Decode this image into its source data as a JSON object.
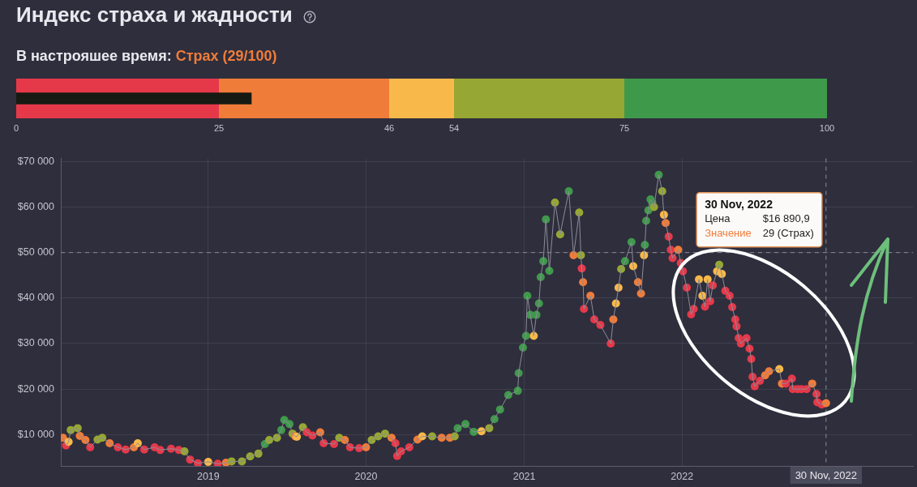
{
  "chart_data": [
    {
      "type": "bar",
      "orientation": "horizontal",
      "title": "Индекс страха и жадности",
      "subtitle": "В настрояшее время:",
      "annotations": [
        "Страх (29/100)"
      ],
      "categories": [
        null
      ],
      "values": [
        29
      ],
      "color": "#161a12",
      "xlim": [
        0,
        100
      ],
      "xticks": [
        0,
        25,
        46,
        54,
        75,
        100
      ],
      "bands": [
        {
          "axis": "x",
          "from": 0,
          "to": 25,
          "color": "#e5394a"
        },
        {
          "axis": "x",
          "from": 25,
          "to": 46,
          "color": "#f07c3a"
        },
        {
          "axis": "x",
          "from": 46,
          "to": 54,
          "color": "#f8b94a"
        },
        {
          "axis": "x",
          "from": 54,
          "to": 75,
          "color": "#97a733"
        },
        {
          "axis": "x",
          "from": 75,
          "to": 100,
          "color": "#3f994b"
        }
      ]
    },
    {
      "type": "line",
      "color": "#8c8c98",
      "marker": "circle",
      "grid": true,
      "xlim": [
        "2018-01-25",
        "2023-06-19"
      ],
      "xticks": [
        "2019",
        "2020",
        "2021",
        "2022"
      ],
      "ylim": [
        3100,
        70700
      ],
      "yticks": [
        {
          "value": 10000,
          "label": "$10 000"
        },
        {
          "value": 20000,
          "label": "$20 000"
        },
        {
          "value": 30000,
          "label": "$30 000"
        },
        {
          "value": 40000,
          "label": "$40 000"
        },
        {
          "value": 50000,
          "label": "$50 000"
        },
        {
          "value": 60000,
          "label": "$60 000"
        },
        {
          "value": 70000,
          "label": "$70 000"
        }
      ],
      "x": [
        "2018-01-30",
        "2018-02-06",
        "2018-02-12",
        "2018-02-17",
        "2018-03-05",
        "2018-03-10",
        "2018-03-23",
        "2018-04-03",
        "2018-04-20",
        "2018-05-01",
        "2018-05-18",
        "2018-06-06",
        "2018-06-24",
        "2018-07-13",
        "2018-07-22",
        "2018-08-06",
        "2018-08-30",
        "2018-09-12",
        "2018-10-07",
        "2018-10-25",
        "2018-11-07",
        "2018-11-20",
        "2018-12-08",
        "2019-01-01",
        "2019-01-23",
        "2019-02-11",
        "2019-02-24",
        "2019-03-20",
        "2019-04-08",
        "2019-04-27",
        "2019-05-12",
        "2019-05-22",
        "2019-06-09",
        "2019-06-19",
        "2019-06-26",
        "2019-07-08",
        "2019-07-15",
        "2019-07-21",
        "2019-07-25",
        "2019-08-08",
        "2019-08-17",
        "2019-08-30",
        "2019-09-17",
        "2019-09-25",
        "2019-10-19",
        "2019-10-31",
        "2019-11-13",
        "2019-11-25",
        "2019-12-16",
        "2020-01-01",
        "2020-01-14",
        "2020-01-29",
        "2020-02-14",
        "2020-02-29",
        "2020-03-09",
        "2020-03-13",
        "2020-03-22",
        "2020-04-10",
        "2020-04-29",
        "2020-05-10",
        "2020-06-02",
        "2020-06-24",
        "2020-07-13",
        "2020-07-24",
        "2020-07-31",
        "2020-08-18",
        "2020-09-06",
        "2020-09-24",
        "2020-10-12",
        "2020-10-24",
        "2020-11-06",
        "2020-11-25",
        "2020-12-17",
        "2020-12-19",
        "2020-12-29",
        "2021-01-05",
        "2021-01-08",
        "2021-01-15",
        "2021-01-23",
        "2021-01-29",
        "2021-02-04",
        "2021-02-08",
        "2021-02-14",
        "2021-02-20",
        "2021-02-28",
        "2021-03-13",
        "2021-03-25",
        "2021-04-14",
        "2021-04-25",
        "2021-05-08",
        "2021-05-12",
        "2021-05-14",
        "2021-05-17",
        "2021-05-19",
        "2021-06-03",
        "2021-06-12",
        "2021-06-26",
        "2021-07-20",
        "2021-07-26",
        "2021-08-01",
        "2021-08-07",
        "2021-08-13",
        "2021-08-22",
        "2021-09-06",
        "2021-09-10",
        "2021-09-21",
        "2021-09-28",
        "2021-10-05",
        "2021-10-07",
        "2021-10-10",
        "2021-10-15",
        "2021-10-20",
        "2021-10-24",
        "2021-10-28",
        "2021-11-08",
        "2021-11-16",
        "2021-11-20",
        "2021-11-24",
        "2021-12-01",
        "2021-12-06",
        "2021-12-10",
        "2021-12-23",
        "2021-12-29",
        "2022-01-03",
        "2022-01-12",
        "2022-01-22",
        "2022-01-28",
        "2022-02-09",
        "2022-02-17",
        "2022-02-23",
        "2022-03-01",
        "2022-03-07",
        "2022-03-13",
        "2022-03-23",
        "2022-03-28",
        "2022-04-03",
        "2022-04-11",
        "2022-04-21",
        "2022-04-27",
        "2022-05-04",
        "2022-05-07",
        "2022-05-12",
        "2022-05-17",
        "2022-05-30",
        "2022-06-06",
        "2022-06-10",
        "2022-06-13",
        "2022-06-18",
        "2022-06-30",
        "2022-07-12",
        "2022-07-21",
        "2022-08-14",
        "2022-08-20",
        "2022-08-29",
        "2022-09-12",
        "2022-09-14",
        "2022-09-25",
        "2022-10-04",
        "2022-10-16",
        "2022-10-29",
        "2022-11-08",
        "2022-11-10",
        "2022-11-20",
        "2022-11-30"
      ],
      "values": [
        9300,
        7600,
        8400,
        11000,
        11400,
        9700,
        8800,
        7200,
        8900,
        9300,
        8100,
        7200,
        6700,
        7200,
        8100,
        6700,
        7200,
        6600,
        6900,
        6600,
        6300,
        4500,
        3700,
        4000,
        3600,
        3800,
        4100,
        4100,
        5200,
        5800,
        7900,
        8800,
        9300,
        11000,
        13200,
        12300,
        10200,
        9600,
        9500,
        11600,
        10500,
        9800,
        10500,
        8100,
        7900,
        9300,
        8800,
        7200,
        7000,
        7200,
        8800,
        9600,
        10200,
        9300,
        8100,
        5300,
        6300,
        7200,
        8900,
        9600,
        9600,
        9300,
        9300,
        9600,
        11400,
        12300,
        10600,
        10700,
        11400,
        13400,
        15500,
        18700,
        19600,
        23500,
        29100,
        31700,
        40500,
        36300,
        31700,
        36300,
        38800,
        44600,
        48100,
        57300,
        46000,
        61000,
        54000,
        63500,
        49400,
        58800,
        49400,
        46500,
        43500,
        37600,
        40500,
        35300,
        34100,
        30000,
        35300,
        38800,
        42300,
        46400,
        48100,
        52300,
        47000,
        43500,
        41000,
        49400,
        51700,
        57000,
        59300,
        61700,
        61000,
        60000,
        67100,
        63500,
        58300,
        56500,
        53500,
        50600,
        48800,
        50600,
        47700,
        45900,
        42300,
        36400,
        37600,
        44100,
        40500,
        38100,
        44100,
        39300,
        42800,
        45900,
        47300,
        45300,
        41600,
        40500,
        38000,
        35300,
        33800,
        31200,
        30000,
        31200,
        28900,
        26600,
        22700,
        20600,
        21800,
        23000,
        23900,
        24400,
        21200,
        21200,
        22300,
        20000,
        20000,
        20000,
        20000,
        21200,
        18900,
        17100,
        16600,
        16890.9
      ],
      "colors": [
        "#f07c3a",
        "#e5394a",
        "#f8b94a",
        "#97a733",
        "#97a733",
        "#f07c3a",
        "#f07c3a",
        "#e5394a",
        "#97a733",
        "#97a733",
        "#f07c3a",
        "#e5394a",
        "#e5394a",
        "#f07c3a",
        "#f8b94a",
        "#e5394a",
        "#e5394a",
        "#e5394a",
        "#e5394a",
        "#e5394a",
        "#97a733",
        "#e5394a",
        "#e5394a",
        "#f8b94a",
        "#e5394a",
        "#f07c3a",
        "#97a733",
        "#97a733",
        "#97a733",
        "#97a733",
        "#3f994b",
        "#97a733",
        "#97a733",
        "#3f994b",
        "#3f994b",
        "#3f994b",
        "#97a733",
        "#f07c3a",
        "#f8b94a",
        "#97a733",
        "#e5394a",
        "#e5394a",
        "#f07c3a",
        "#e5394a",
        "#e5394a",
        "#97a733",
        "#f07c3a",
        "#e5394a",
        "#e5394a",
        "#f07c3a",
        "#97a733",
        "#97a733",
        "#97a733",
        "#f07c3a",
        "#e5394a",
        "#e5394a",
        "#e5394a",
        "#e5394a",
        "#f07c3a",
        "#f8b94a",
        "#97a733",
        "#f07c3a",
        "#f07c3a",
        "#97a733",
        "#3f994b",
        "#3f994b",
        "#3f994b",
        "#f8b94a",
        "#97a733",
        "#3f994b",
        "#3f994b",
        "#3f994b",
        "#3f994b",
        "#3f994b",
        "#3f994b",
        "#3f994b",
        "#3f994b",
        "#3f994b",
        "#f8b94a",
        "#3f994b",
        "#3f994b",
        "#3f994b",
        "#3f994b",
        "#3f994b",
        "#3f994b",
        "#97a733",
        "#97a733",
        "#3f994b",
        "#f07c3a",
        "#97a733",
        "#97a733",
        "#e5394a",
        "#f07c3a",
        "#e5394a",
        "#f07c3a",
        "#e5394a",
        "#e5394a",
        "#e5394a",
        "#f07c3a",
        "#f8b94a",
        "#f8b94a",
        "#97a733",
        "#3f994b",
        "#3f994b",
        "#f8b94a",
        "#f07c3a",
        "#f07c3a",
        "#f8b94a",
        "#3f994b",
        "#3f994b",
        "#3f994b",
        "#3f994b",
        "#3f994b",
        "#97a733",
        "#3f994b",
        "#97a733",
        "#f8b94a",
        "#f07c3a",
        "#e5394a",
        "#e5394a",
        "#e5394a",
        "#f07c3a",
        "#e5394a",
        "#e5394a",
        "#e5394a",
        "#e5394a",
        "#e5394a",
        "#f8b94a",
        "#f8b94a",
        "#e5394a",
        "#f8b94a",
        "#e5394a",
        "#e5394a",
        "#f8b94a",
        "#97a733",
        "#f8b94a",
        "#e5394a",
        "#e5394a",
        "#e5394a",
        "#e5394a",
        "#e5394a",
        "#e5394a",
        "#e5394a",
        "#e5394a",
        "#e5394a",
        "#e5394a",
        "#e5394a",
        "#e5394a",
        "#e5394a",
        "#f07c3a",
        "#f07c3a",
        "#f8b94a",
        "#f07c3a",
        "#e5394a",
        "#e5394a",
        "#e5394a",
        "#e5394a",
        "#e5394a",
        "#e5394a",
        "#f07c3a",
        "#e5394a",
        "#e5394a",
        "#e5394a",
        "#f07c3a"
      ],
      "ref_lines": [
        {
          "axis": "x",
          "value": "2022-11-30",
          "label": "30 Nov, 2022",
          "color": "#8c8c98",
          "line_style": "dashed"
        },
        {
          "axis": "y",
          "value": 50000,
          "color": "#8c8c98",
          "line_style": "dashed"
        }
      ],
      "annotations": [
        "30 Nov, 2022",
        "Цена",
        "$16 890,9",
        "Значение",
        "29 (Страх)"
      ]
    }
  ]
}
